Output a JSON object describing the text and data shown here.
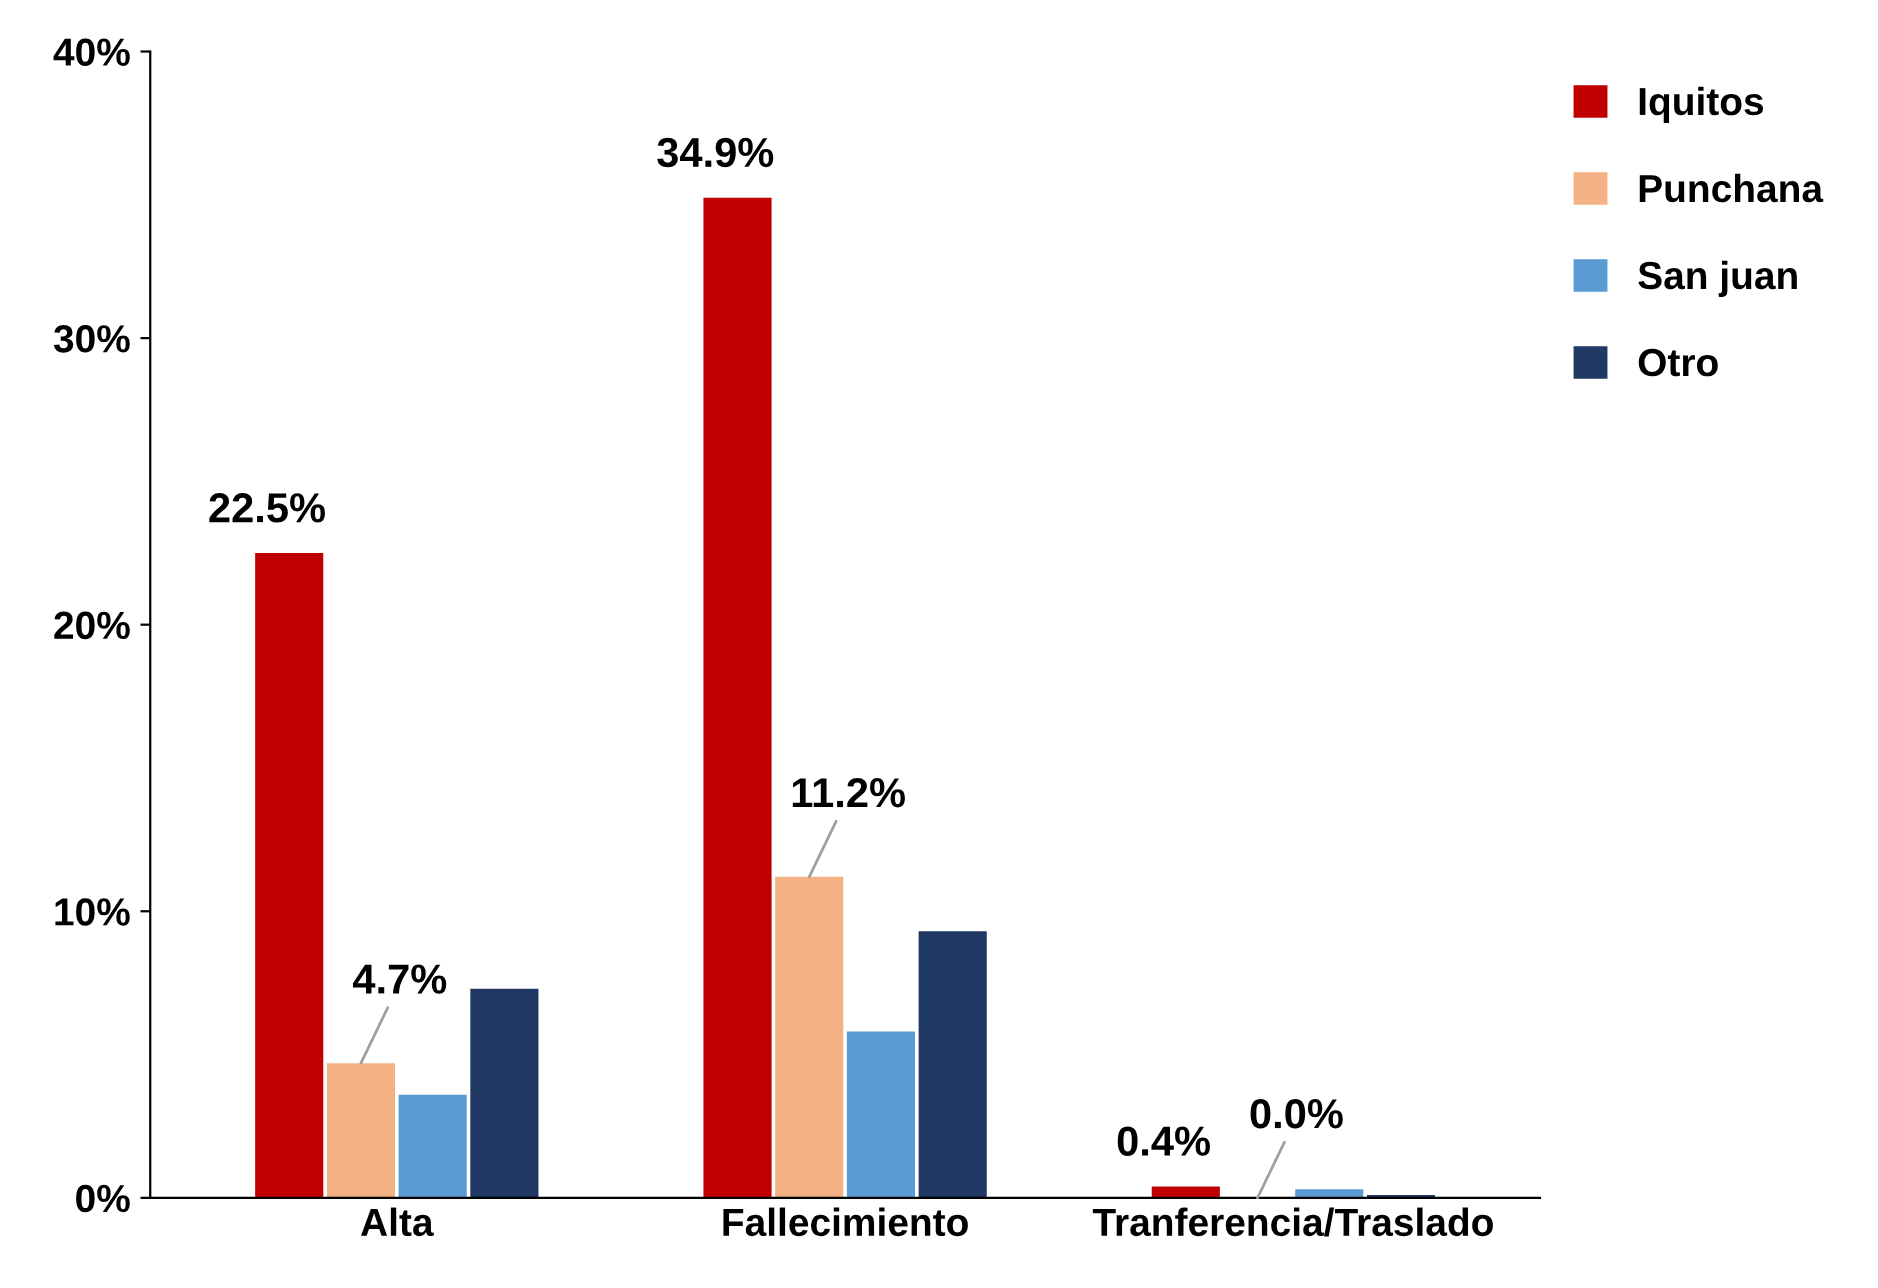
{
  "chart_data": {
    "type": "bar",
    "categories": [
      "Alta",
      "Fallecimiento",
      "Tranferencia/Traslado"
    ],
    "series": [
      {
        "name": "Iquitos",
        "color": "#c00000",
        "values": [
          22.5,
          34.9,
          0.4
        ],
        "value_labels": [
          "22.5%",
          "34.9%",
          "0.4%"
        ]
      },
      {
        "name": "Punchana",
        "color": "#f4b183",
        "values": [
          4.7,
          11.2,
          0.0
        ],
        "value_labels": [
          "4.7%",
          "11.2%",
          "0.0%"
        ]
      },
      {
        "name": "San juan",
        "color": "#5b9bd5",
        "values": [
          3.6,
          5.8,
          0.3
        ],
        "value_labels": [
          null,
          null,
          null
        ]
      },
      {
        "name": "Otro",
        "color": "#1f3864",
        "values": [
          7.3,
          9.3,
          0.1
        ],
        "value_labels": [
          null,
          null,
          null
        ]
      }
    ],
    "ylim": [
      0,
      40
    ],
    "yticks": [
      {
        "value": 0,
        "label": "0%"
      },
      {
        "value": 10,
        "label": "10%"
      },
      {
        "value": 20,
        "label": "20%"
      },
      {
        "value": 30,
        "label": "30%"
      },
      {
        "value": 40,
        "label": "40%"
      }
    ],
    "grid": false,
    "legend": "top right"
  }
}
